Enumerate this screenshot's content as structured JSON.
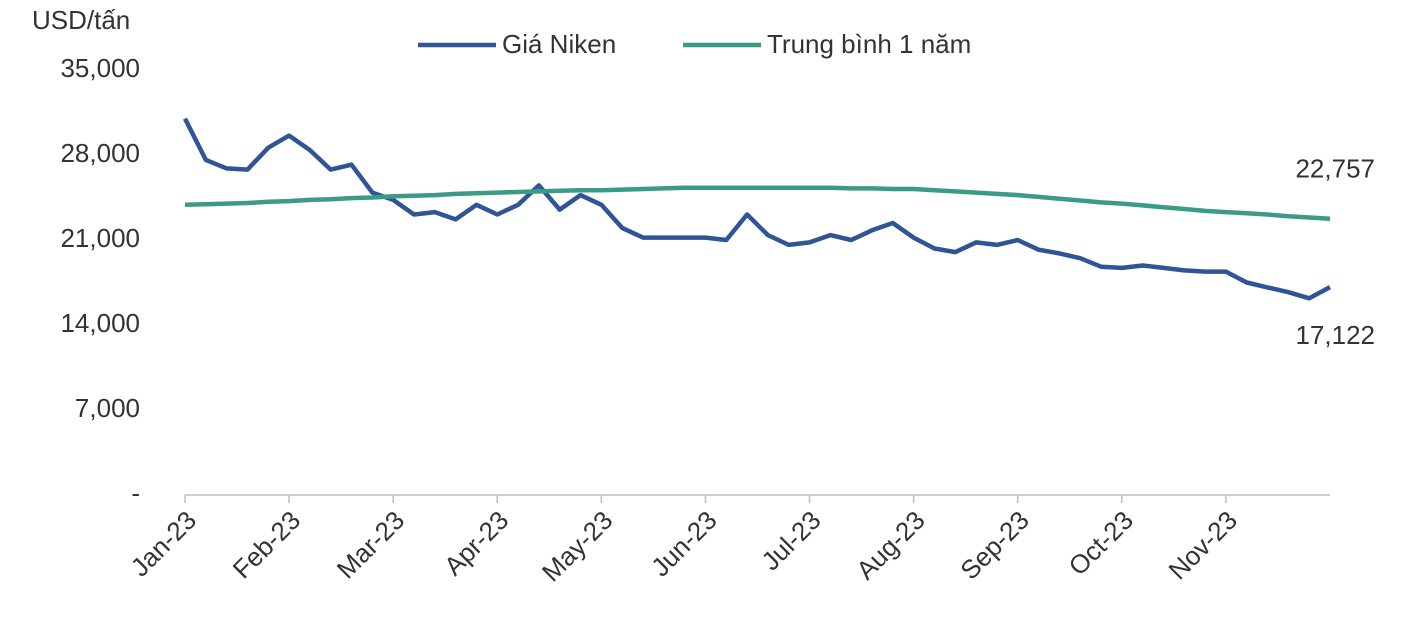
{
  "chart_data": {
    "type": "line",
    "y_label": "USD/tấn",
    "categories": [
      "Jan-23",
      null,
      null,
      null,
      null,
      "Feb-23",
      null,
      null,
      null,
      null,
      "Mar-23",
      null,
      null,
      null,
      null,
      "Apr-23",
      null,
      null,
      null,
      null,
      "May-23",
      null,
      null,
      null,
      null,
      "Jun-23",
      null,
      null,
      null,
      null,
      "Jul-23",
      null,
      null,
      null,
      null,
      "Aug-23",
      null,
      null,
      null,
      null,
      "Sep-23",
      null,
      null,
      null,
      null,
      "Oct-23",
      null,
      null,
      null,
      null,
      "Nov-23",
      null,
      null,
      null,
      null,
      null
    ],
    "series": [
      {
        "name": "Giá Niken",
        "color": "#2f5597",
        "values": [
          31000,
          27600,
          26900,
          26800,
          28600,
          29600,
          28400,
          26800,
          27200,
          24900,
          24300,
          23100,
          23300,
          22700,
          23900,
          23100,
          23900,
          25500,
          23500,
          24700,
          23900,
          22000,
          21200,
          21200,
          21200,
          21200,
          21000,
          23100,
          21400,
          20600,
          20800,
          21400,
          21000,
          21800,
          22400,
          21200,
          20300,
          20000,
          20800,
          20600,
          21000,
          20200,
          19900,
          19500,
          18800,
          18700,
          18900,
          18700,
          18500,
          18400,
          18400,
          17500,
          17100,
          16700,
          16200,
          17122
        ],
        "value_labels": [
          null,
          null,
          null,
          null,
          null,
          null,
          null,
          null,
          null,
          null,
          null,
          null,
          null,
          null,
          null,
          null,
          null,
          null,
          null,
          null,
          null,
          null,
          null,
          null,
          null,
          null,
          null,
          null,
          null,
          null,
          null,
          null,
          null,
          null,
          null,
          null,
          null,
          null,
          null,
          null,
          null,
          null,
          null,
          null,
          null,
          null,
          null,
          null,
          null,
          null,
          null,
          null,
          null,
          null,
          null,
          "17,122"
        ]
      },
      {
        "name": "Trung bình 1 năm",
        "color": "#3a9c85",
        "values": [
          23900,
          23950,
          24000,
          24050,
          24150,
          24200,
          24300,
          24350,
          24450,
          24500,
          24600,
          24650,
          24700,
          24800,
          24850,
          24900,
          24950,
          25000,
          25050,
          25100,
          25100,
          25150,
          25200,
          25250,
          25300,
          25300,
          25300,
          25300,
          25300,
          25300,
          25300,
          25300,
          25250,
          25250,
          25200,
          25200,
          25100,
          25000,
          24900,
          24800,
          24700,
          24550,
          24400,
          24250,
          24100,
          24000,
          23850,
          23700,
          23550,
          23400,
          23300,
          23200,
          23100,
          22950,
          22850,
          22757
        ],
        "value_labels": [
          null,
          null,
          null,
          null,
          null,
          null,
          null,
          null,
          null,
          null,
          null,
          null,
          null,
          null,
          null,
          null,
          null,
          null,
          null,
          null,
          null,
          null,
          null,
          null,
          null,
          null,
          null,
          null,
          null,
          null,
          null,
          null,
          null,
          null,
          null,
          null,
          null,
          null,
          null,
          null,
          null,
          null,
          null,
          null,
          null,
          null,
          null,
          null,
          null,
          null,
          null,
          null,
          null,
          null,
          null,
          "22,757"
        ]
      }
    ],
    "ylim": [
      0,
      35000
    ],
    "yticks": [
      {
        "value": 0,
        "label": "-"
      },
      {
        "value": 7000,
        "label": "7,000"
      },
      {
        "value": 14000,
        "label": "14,000"
      },
      {
        "value": 21000,
        "label": "21,000"
      },
      {
        "value": 28000,
        "label": "28,000"
      },
      {
        "value": 35000,
        "label": "35,000"
      }
    ],
    "grid": false,
    "legend": "top"
  }
}
